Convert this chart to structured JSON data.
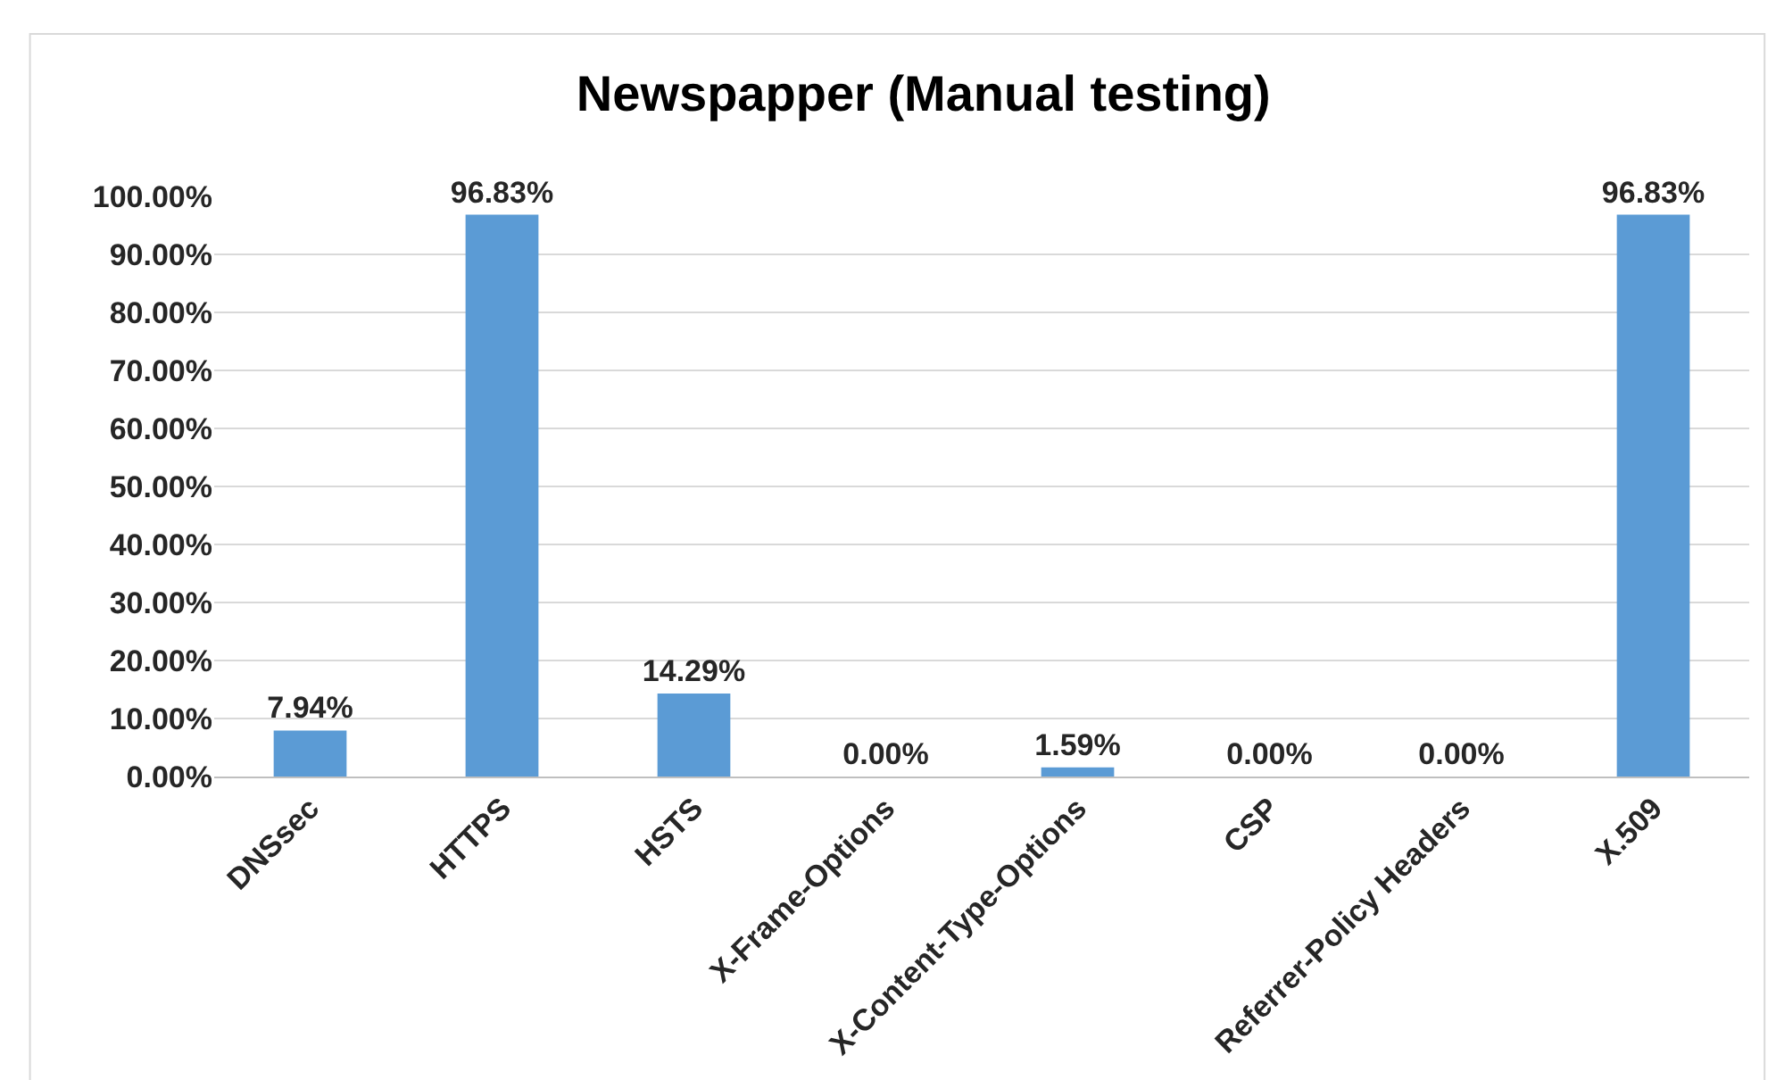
{
  "chart_data": {
    "type": "bar",
    "title": "Newspapper (Manual testing)",
    "categories": [
      "DNSsec",
      "HTTPS",
      "HSTS",
      "X-Frame-Options",
      "X-Content-Type-Options",
      "CSP",
      "Referrer-Policy Headers",
      "X.509"
    ],
    "values": [
      7.94,
      96.83,
      14.29,
      0,
      1.59,
      0,
      0,
      96.83
    ],
    "value_labels": [
      "7.94%",
      "96.83%",
      "14.29%",
      "0.00%",
      "1.59%",
      "0.00%",
      "0.00%",
      "96.83%"
    ],
    "color": "#5b9bd5",
    "ylim": [
      0,
      100
    ],
    "yticks": [
      {
        "value": 0,
        "label": "0.00%"
      },
      {
        "value": 10,
        "label": "10.00%"
      },
      {
        "value": 20,
        "label": "20.00%"
      },
      {
        "value": 30,
        "label": "30.00%"
      },
      {
        "value": 40,
        "label": "40.00%"
      },
      {
        "value": 50,
        "label": "50.00%"
      },
      {
        "value": 60,
        "label": "60.00%"
      },
      {
        "value": 70,
        "label": "70.00%"
      },
      {
        "value": 80,
        "label": "80.00%"
      },
      {
        "value": 90,
        "label": "90.00%"
      },
      {
        "value": 100,
        "label": "100.00%"
      }
    ],
    "grid": "y",
    "legend": false
  }
}
